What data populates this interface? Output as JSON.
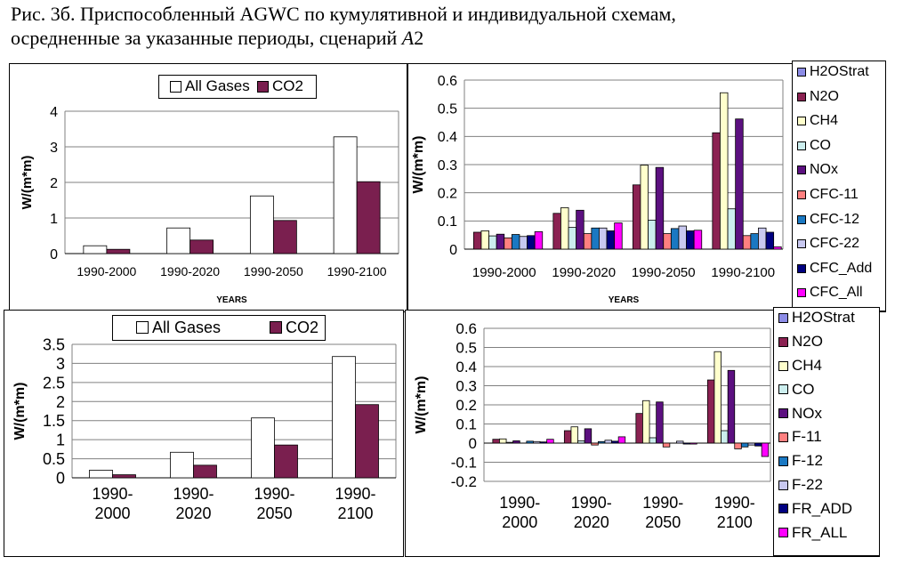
{
  "caption": {
    "line1": "Рис. 3б. Приспособленный AGWC по кумулятивной и индивидуальной схемам,",
    "line2": "осредненные за указанные периоды, сценарий ",
    "line2_italic": "A",
    "line2_end": "2"
  },
  "colors": {
    "all_gases": "#ffffff",
    "co2": "#7a1f4f",
    "series": [
      "#8c8ce6",
      "#8b2252",
      "#ffffcc",
      "#cceeee",
      "#5c1080",
      "#ff8080",
      "#1a78c2",
      "#c8c8f0",
      "#000080",
      "#ff00ff"
    ]
  },
  "chart_data": [
    {
      "type": "bar",
      "categories": [
        "1990-2000",
        "1990-2020",
        "1990-2050",
        "1990-2100"
      ],
      "series": [
        {
          "name": "All Gases",
          "values": [
            0.22,
            0.72,
            1.62,
            3.28
          ]
        },
        {
          "name": "CO2",
          "values": [
            0.12,
            0.38,
            0.93,
            2.02
          ]
        }
      ],
      "ylabel": "W/(m*m)",
      "xlabel": "YEARS",
      "ylim": [
        0,
        4
      ],
      "yticks": [
        "0",
        "1",
        "2",
        "3",
        "4"
      ],
      "legend": "top"
    },
    {
      "type": "bar",
      "categories": [
        "1990-2000",
        "1990-2020",
        "1990-2050",
        "1990-2100"
      ],
      "series": [
        {
          "name": "H2OStrat",
          "values": [
            0.0,
            0.0,
            0.0,
            0.0
          ]
        },
        {
          "name": "N2O",
          "values": [
            0.06,
            0.127,
            0.228,
            0.413
          ]
        },
        {
          "name": "CH4",
          "values": [
            0.065,
            0.147,
            0.298,
            0.555
          ]
        },
        {
          "name": "CO",
          "values": [
            0.047,
            0.077,
            0.103,
            0.143
          ]
        },
        {
          "name": "NOx",
          "values": [
            0.053,
            0.138,
            0.29,
            0.462
          ]
        },
        {
          "name": "CFC-11",
          "values": [
            0.04,
            0.055,
            0.055,
            0.048
          ]
        },
        {
          "name": "CFC-12",
          "values": [
            0.052,
            0.075,
            0.073,
            0.055
          ]
        },
        {
          "name": "CFC-22",
          "values": [
            0.045,
            0.075,
            0.082,
            0.075
          ]
        },
        {
          "name": "CFC_Add",
          "values": [
            0.048,
            0.065,
            0.065,
            0.06
          ]
        },
        {
          "name": "CFC_All",
          "values": [
            0.062,
            0.093,
            0.067,
            0.008
          ]
        }
      ],
      "ylabel": "W/(m*m)",
      "xlabel": "YEARS",
      "ylim": [
        0,
        0.6
      ],
      "yticks": [
        "0",
        "0.1",
        "0.2",
        "0.3",
        "0.4",
        "0.5",
        "0.6"
      ],
      "legend": "right"
    },
    {
      "type": "bar",
      "categories": [
        "1990-\n2000",
        "1990-\n2020",
        "1990-\n2050",
        "1990-\n2100"
      ],
      "series": [
        {
          "name": "All Gases",
          "values": [
            0.2,
            0.67,
            1.57,
            3.18
          ]
        },
        {
          "name": "CO2",
          "values": [
            0.08,
            0.33,
            0.86,
            1.92
          ]
        }
      ],
      "ylabel": "W/(m*m)",
      "ylim": [
        0,
        3.5
      ],
      "yticks": [
        "0",
        "0.5",
        "1",
        "1.5",
        "2",
        "2.5",
        "3",
        "3.5"
      ],
      "legend": "top"
    },
    {
      "type": "bar",
      "categories": [
        "1990-\n2000",
        "1990-\n2020",
        "1990-\n2050",
        "1990-\n2100"
      ],
      "series": [
        {
          "name": "H2OStrat",
          "values": [
            0.0,
            0.0,
            0.0,
            0.0
          ]
        },
        {
          "name": "N2O",
          "values": [
            0.02,
            0.065,
            0.155,
            0.33
          ]
        },
        {
          "name": "CH4",
          "values": [
            0.022,
            0.085,
            0.222,
            0.478
          ]
        },
        {
          "name": "CO",
          "values": [
            0.004,
            0.012,
            0.028,
            0.065
          ]
        },
        {
          "name": "NOx",
          "values": [
            0.012,
            0.075,
            0.215,
            0.38
          ]
        },
        {
          "name": "F-11",
          "values": [
            0.0,
            -0.01,
            -0.02,
            -0.03
          ]
        },
        {
          "name": "F-12",
          "values": [
            0.01,
            0.008,
            0.0,
            -0.02
          ]
        },
        {
          "name": "F-22",
          "values": [
            0.008,
            0.015,
            0.01,
            -0.01
          ]
        },
        {
          "name": "FR_ADD",
          "values": [
            0.006,
            0.01,
            -0.005,
            -0.015
          ]
        },
        {
          "name": "FR_ALL",
          "values": [
            0.02,
            0.033,
            -0.005,
            -0.07
          ]
        }
      ],
      "ylabel": "W/(m*m)",
      "ylim": [
        -0.2,
        0.6
      ],
      "yticks": [
        "-0.2",
        "-0.1",
        "0",
        "0.1",
        "0.2",
        "0.3",
        "0.4",
        "0.5",
        "0.6"
      ],
      "legend": "right"
    }
  ]
}
